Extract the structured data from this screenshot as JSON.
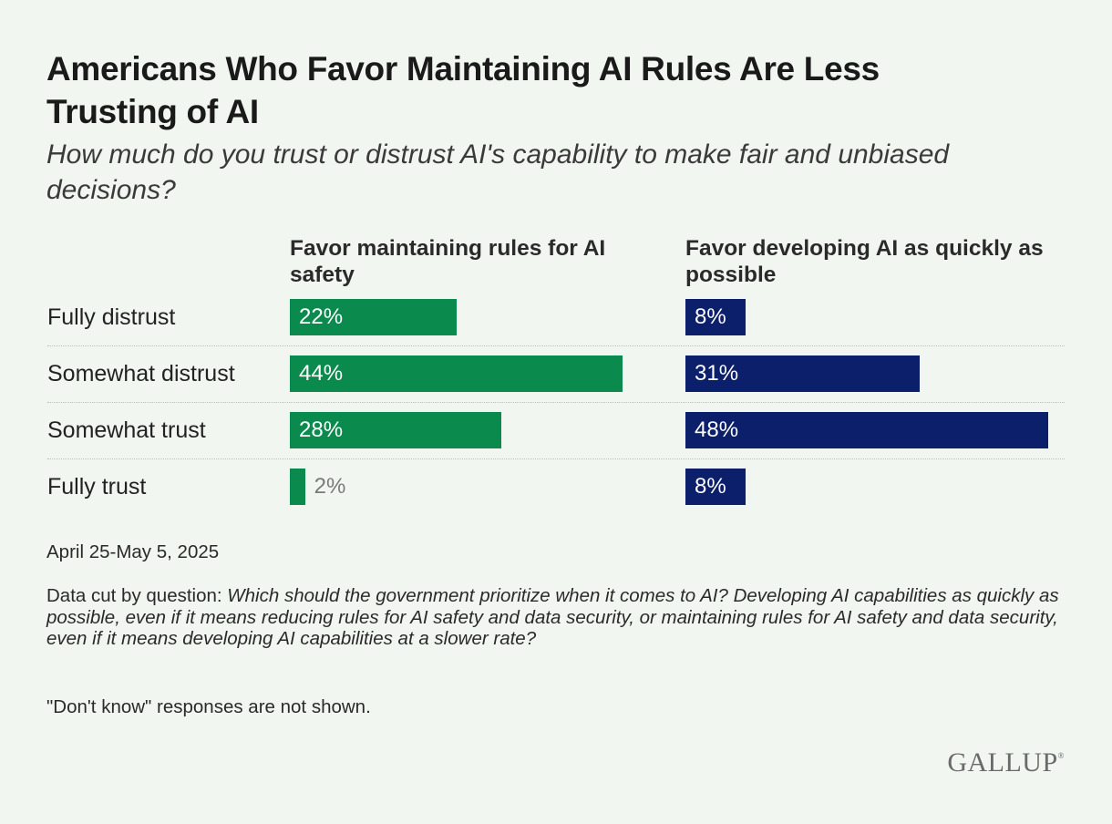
{
  "title": "Americans Who Favor Maintaining AI Rules Are Less Trusting of AI",
  "subtitle": "How much do you trust or distrust AI's capability to make fair and unbiased decisions?",
  "chart_data": {
    "type": "bar",
    "orientation": "horizontal",
    "layout": "side-by-side panels",
    "categories": [
      "Fully distrust",
      "Somewhat distrust",
      "Somewhat trust",
      "Fully trust"
    ],
    "unit": "%",
    "xlim": [
      0,
      50
    ],
    "grid": false,
    "series": [
      {
        "name": "Favor maintaining rules for AI safety",
        "values": [
          22,
          44,
          28,
          2
        ],
        "color": "#0b8a4e"
      },
      {
        "name": "Favor developing AI as quickly as possible",
        "values": [
          8,
          31,
          48,
          8
        ],
        "color": "#0b1f6b"
      }
    ]
  },
  "notes": {
    "date": "April 25-May 5, 2025",
    "question_prefix": "Data cut by question: ",
    "question_text": "Which should the government prioritize when it comes to AI? Developing AI capabilities as quickly as possible, even if it means reducing rules for AI safety and data security, or maintaining rules for AI safety and data security, even if it means developing AI capabilities at a slower rate?",
    "dont_know": "\"Don't know\" responses are not shown."
  },
  "logo": {
    "text": "GALLUP",
    "mark": "®"
  }
}
